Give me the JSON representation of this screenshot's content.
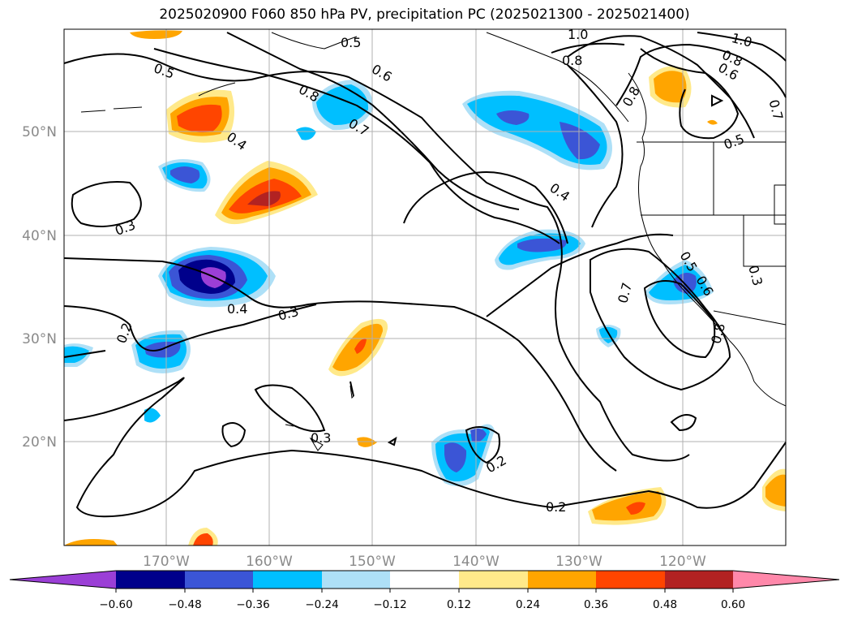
{
  "title": "2025020900 F060 850 hPa PV, precipitation PC (2025021300 - 2025021400)",
  "lon_ticks": [
    "170°W",
    "160°W",
    "150°W",
    "140°W",
    "130°W",
    "120°W"
  ],
  "lat_ticks": [
    "50°N",
    "40°N",
    "30°N",
    "20°N"
  ],
  "contour_labels": [
    "0.5",
    "0.5",
    "0.6",
    "1.0",
    "0.8",
    "1.0",
    "0.8",
    "0.6",
    "0.7",
    "0.8",
    "0.8",
    "0.7",
    "0.4",
    "0.4",
    "0.3",
    "0.7",
    "0.4",
    "0.3",
    "0.2",
    "0.5",
    "0.6",
    "0.3",
    "0.8",
    "0.3",
    "0.2",
    "0.2",
    "0.5"
  ],
  "colorbar": {
    "tick_labels": [
      "−0.60",
      "−0.48",
      "−0.36",
      "−0.24",
      "−0.12",
      "0.12",
      "0.24",
      "0.36",
      "0.48",
      "0.60"
    ],
    "colors": [
      "#9b3fd6",
      "#00008b",
      "#3b55d6",
      "#00bfff",
      "#aee0f7",
      "#ffffff",
      "#ffe98a",
      "#ffa500",
      "#ff4500",
      "#b22222",
      "#ff88aa"
    ]
  }
}
